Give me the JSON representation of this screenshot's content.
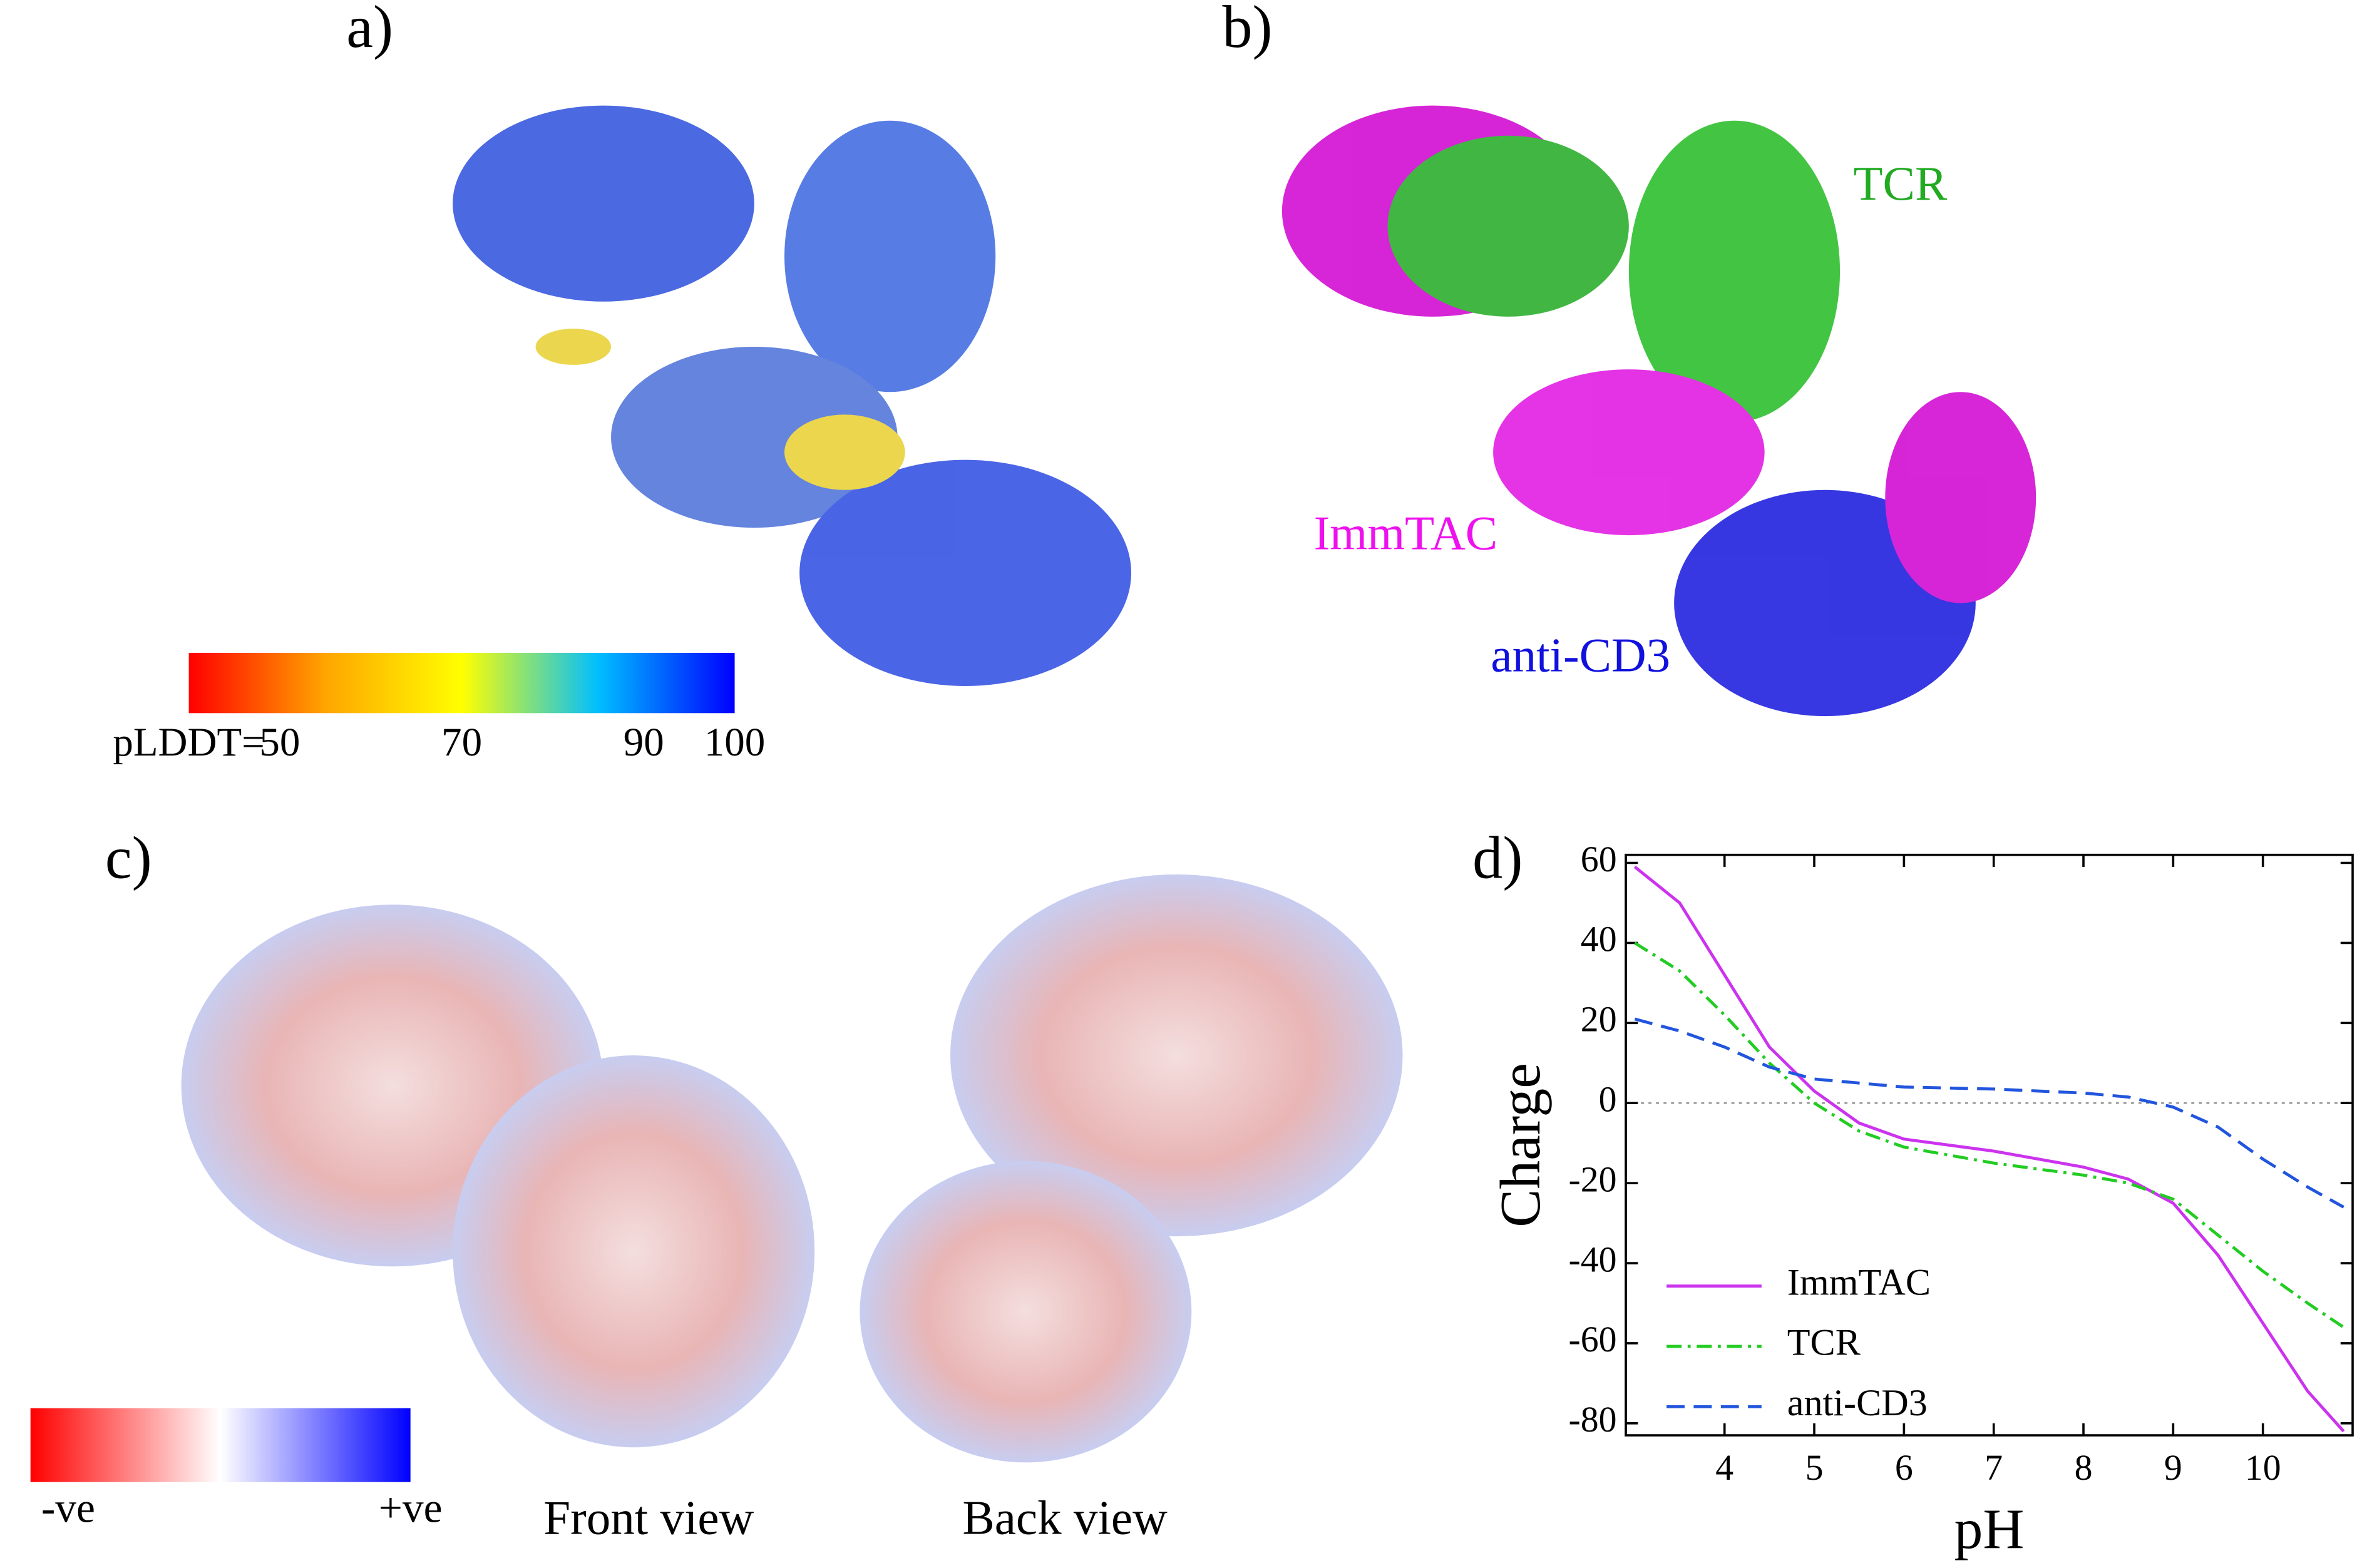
{
  "panels": {
    "a": {
      "label": "a)",
      "colorbar_title": "pLDDT=",
      "colorbar_ticks": [
        50,
        70,
        90,
        100
      ]
    },
    "b": {
      "label": "b)",
      "annotations": [
        "TCR",
        "ImmTAC",
        "anti-CD3"
      ]
    },
    "c": {
      "label": "c)",
      "colorbar_ends": [
        "-ve",
        "+ve"
      ],
      "views": [
        "Front view",
        "Back view"
      ]
    },
    "d": {
      "label": "d)"
    }
  },
  "chart_data": {
    "type": "line",
    "xlabel": "pH",
    "ylabel": "Charge",
    "x": [
      3.0,
      3.5,
      4.0,
      4.5,
      5.0,
      5.5,
      6.0,
      7.0,
      8.0,
      8.5,
      9.0,
      9.5,
      10.0,
      10.5,
      10.9
    ],
    "series": [
      {
        "name": "ImmTAC",
        "color": "#cc33ee",
        "dash": "solid",
        "values": [
          59,
          50,
          32,
          14,
          3,
          -5,
          -9,
          -12,
          -16,
          -19,
          -25,
          -38,
          -55,
          -72,
          -82
        ]
      },
      {
        "name": "TCR",
        "color": "#22cc22",
        "dash": "dashdot",
        "values": [
          40,
          33,
          22,
          10,
          0,
          -7,
          -11,
          -15,
          -18,
          -20,
          -24,
          -33,
          -42,
          -50,
          -56
        ]
      },
      {
        "name": "anti-CD3",
        "color": "#2255dd",
        "dash": "dashed",
        "values": [
          21,
          18,
          14,
          9,
          6,
          5,
          4,
          3.5,
          2.5,
          1.5,
          -1,
          -6,
          -14,
          -21,
          -26
        ]
      }
    ],
    "xlim": [
      2.9,
      11.0
    ],
    "ylim": [
      -83,
      62
    ],
    "xticks": [
      4,
      5,
      6,
      7,
      8,
      9,
      10
    ],
    "yticks": [
      -80,
      -60,
      -40,
      -20,
      0,
      20,
      40,
      60
    ],
    "zero_line": true,
    "legend": "lower left"
  }
}
